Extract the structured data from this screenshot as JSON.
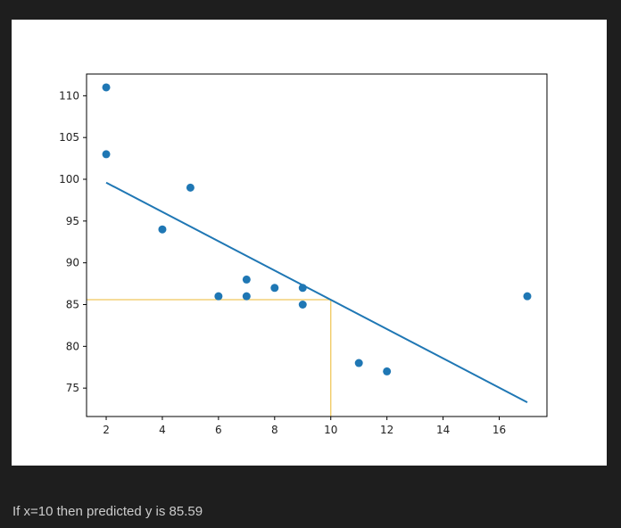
{
  "colors": {
    "page_background": "#1e1e1e",
    "plot_background": "#ffffff",
    "scatter": "#1f77b4",
    "regression_line": "#1f77b4",
    "guide_lines": "#f0c75e",
    "output_text": "#cccccc"
  },
  "chart_data": {
    "type": "scatter",
    "title": "",
    "xlabel": "",
    "ylabel": "",
    "xlim": [
      1.3,
      17.7
    ],
    "ylim": [
      71.6,
      112.6
    ],
    "x_ticks": [
      2,
      4,
      6,
      8,
      10,
      12,
      14,
      16
    ],
    "y_ticks": [
      75,
      80,
      85,
      90,
      95,
      100,
      105,
      110
    ],
    "grid": false,
    "series": [
      {
        "name": "data",
        "kind": "scatter",
        "x": [
          2,
          2,
          4,
          5,
          6,
          7,
          7,
          8,
          9,
          9,
          11,
          12,
          17
        ],
        "y": [
          111,
          103,
          94,
          99,
          86,
          88,
          86,
          87,
          87,
          85,
          78,
          77,
          86
        ]
      },
      {
        "name": "regression",
        "kind": "line",
        "x": [
          2,
          17
        ],
        "y": [
          99.6,
          73.3
        ]
      }
    ],
    "annotation": {
      "x": 10,
      "y": 85.59
    }
  },
  "output": {
    "text": "If x=10 then predicted y is 85.59"
  }
}
